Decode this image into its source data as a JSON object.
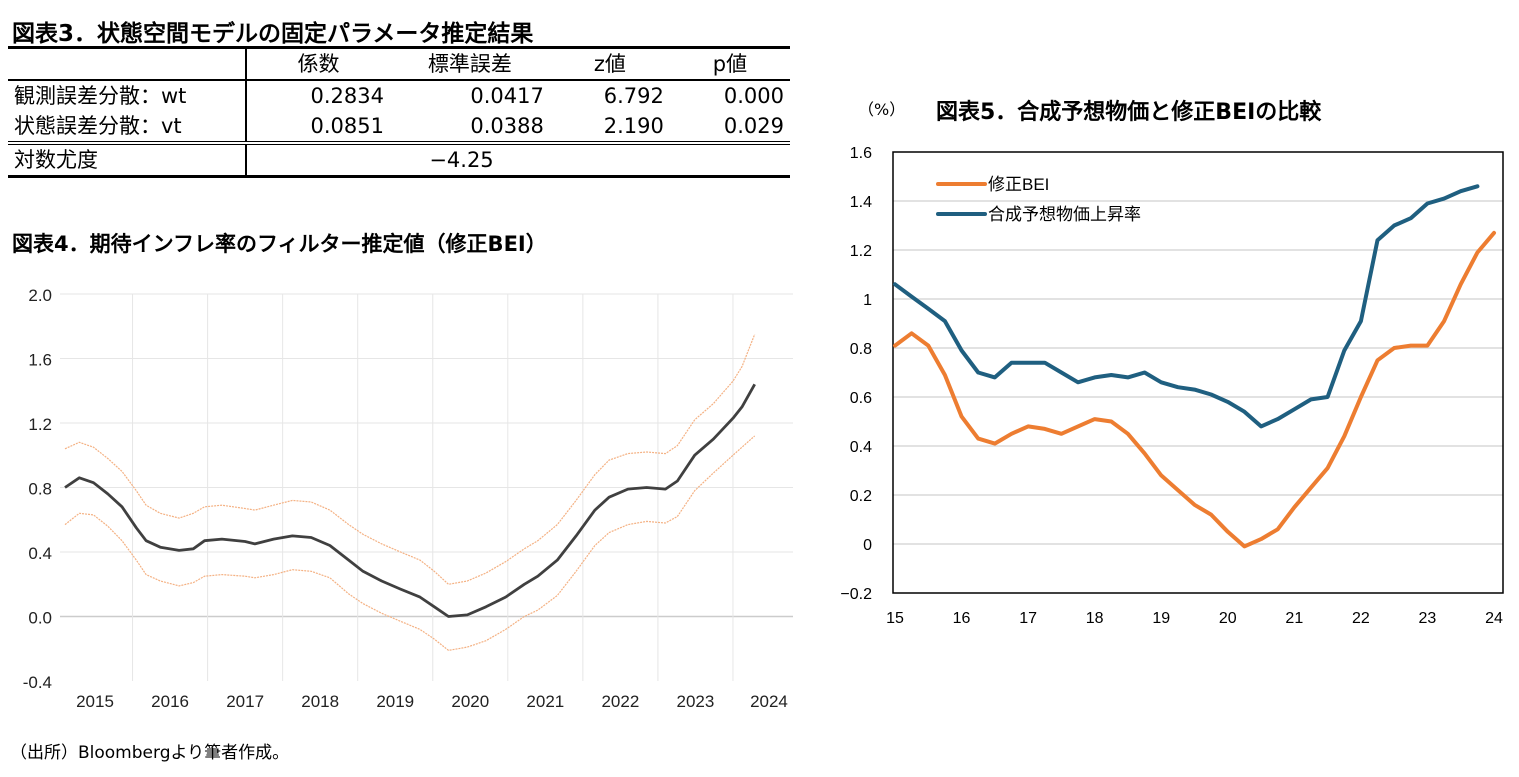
{
  "table3": {
    "title": "図表3．状態空間モデルの固定パラメータ推定結果",
    "headers": [
      "",
      "係数",
      "標準誤差",
      "z値",
      "p値"
    ],
    "rows": [
      {
        "label": "観測誤差分散：wt",
        "coef": "0.2834",
        "se": "0.0417",
        "z": "6.792",
        "p": "0.000"
      },
      {
        "label": "状態誤差分散：vt",
        "coef": "0.0851",
        "se": "0.0388",
        "z": "2.190",
        "p": "0.029"
      }
    ],
    "loglik": {
      "label": "対数尤度",
      "value": "−4.25"
    }
  },
  "source_note": "（出所）Bloombergより筆者作成。",
  "chart_data": [
    {
      "type": "line",
      "title": "図表4．期待インフレ率のフィルター推定値（修正BEI）",
      "xlabel": "",
      "ylabel": "",
      "ylim": [
        -0.4,
        2.0
      ],
      "yticks": [
        "2.0",
        "1.6",
        "1.2",
        "0.8",
        "0.4",
        "0.0",
        "-0.4"
      ],
      "ytick_values": [
        2.0,
        1.6,
        1.2,
        0.8,
        0.4,
        0.0,
        -0.4
      ],
      "xticks": [
        "2015",
        "2016",
        "2017",
        "2018",
        "2019",
        "2020",
        "2021",
        "2022",
        "2023",
        "2024"
      ],
      "xlim": [
        2014.6,
        2024.3
      ],
      "grid": true,
      "legend": "none",
      "colors": {
        "center": "#404040",
        "band": "#f4b183",
        "grid": "#e6e6e6",
        "zero": "#cccccc"
      },
      "x": [
        2014.6,
        2014.79,
        2014.98,
        2015.17,
        2015.36,
        2015.55,
        2015.68,
        2015.87,
        2016.12,
        2016.31,
        2016.46,
        2016.69,
        2017.0,
        2017.13,
        2017.38,
        2017.63,
        2017.88,
        2018.13,
        2018.38,
        2018.57,
        2018.82,
        2019.07,
        2019.33,
        2019.52,
        2019.71,
        2019.96,
        2020.21,
        2020.47,
        2020.72,
        2020.9,
        2021.16,
        2021.41,
        2021.66,
        2021.85,
        2022.1,
        2022.35,
        2022.6,
        2022.76,
        2022.99,
        2023.24,
        2023.5,
        2023.62,
        2023.79
      ],
      "series": [
        {
          "name": "filtered",
          "values": [
            0.8,
            0.86,
            0.83,
            0.76,
            0.68,
            0.55,
            0.47,
            0.43,
            0.41,
            0.42,
            0.47,
            0.48,
            0.465,
            0.45,
            0.48,
            0.5,
            0.49,
            0.44,
            0.35,
            0.28,
            0.22,
            0.17,
            0.12,
            0.06,
            0.0,
            0.01,
            0.06,
            0.12,
            0.2,
            0.25,
            0.35,
            0.5,
            0.66,
            0.74,
            0.79,
            0.8,
            0.79,
            0.84,
            1.0,
            1.1,
            1.23,
            1.3,
            1.44
          ]
        },
        {
          "name": "upper",
          "values": [
            1.04,
            1.08,
            1.05,
            0.98,
            0.9,
            0.78,
            0.69,
            0.64,
            0.61,
            0.64,
            0.68,
            0.69,
            0.67,
            0.66,
            0.69,
            0.72,
            0.71,
            0.66,
            0.57,
            0.51,
            0.45,
            0.4,
            0.35,
            0.28,
            0.2,
            0.22,
            0.27,
            0.34,
            0.42,
            0.47,
            0.57,
            0.72,
            0.88,
            0.97,
            1.01,
            1.02,
            1.01,
            1.06,
            1.22,
            1.32,
            1.46,
            1.55,
            1.75
          ]
        },
        {
          "name": "lower",
          "values": [
            0.57,
            0.64,
            0.63,
            0.56,
            0.47,
            0.35,
            0.26,
            0.22,
            0.19,
            0.21,
            0.25,
            0.26,
            0.25,
            0.24,
            0.26,
            0.29,
            0.28,
            0.24,
            0.14,
            0.08,
            0.02,
            -0.03,
            -0.08,
            -0.14,
            -0.21,
            -0.19,
            -0.15,
            -0.08,
            0.0,
            0.04,
            0.13,
            0.28,
            0.44,
            0.52,
            0.57,
            0.59,
            0.58,
            0.62,
            0.78,
            0.89,
            1.0,
            1.05,
            1.12
          ]
        }
      ]
    },
    {
      "type": "line",
      "title": "図表5．合成予想物価と修正BEIの比較",
      "ylabel": "（%）",
      "xlabel": "",
      "ylim": [
        -0.2,
        1.6
      ],
      "yticks": [
        "1.6",
        "1.4",
        "1.2",
        "1",
        "0.8",
        "0.6",
        "0.4",
        "0.2",
        "0",
        "−0.2"
      ],
      "ytick_values": [
        1.6,
        1.4,
        1.2,
        1.0,
        0.8,
        0.6,
        0.4,
        0.2,
        0.0,
        -0.2
      ],
      "xticks": [
        "15",
        "16",
        "17",
        "18",
        "19",
        "20",
        "21",
        "22",
        "23",
        "24"
      ],
      "xlim": [
        15,
        24
      ],
      "grid": true,
      "legend": "top-left",
      "series": [
        {
          "name": "修正BEI",
          "color": "#ed7d31",
          "x_start": 15,
          "x_step": 0.25,
          "values": [
            0.81,
            0.86,
            0.81,
            0.69,
            0.52,
            0.43,
            0.41,
            0.45,
            0.48,
            0.47,
            0.45,
            0.48,
            0.51,
            0.5,
            0.45,
            0.37,
            0.28,
            0.22,
            0.16,
            0.12,
            0.05,
            -0.01,
            0.02,
            0.06,
            0.15,
            0.23,
            0.31,
            0.44,
            0.6,
            0.75,
            0.8,
            0.81,
            0.81,
            0.91,
            1.06,
            1.19,
            1.27
          ]
        },
        {
          "name": "合成予想物価上昇率",
          "color": "#1f5f80",
          "x_start": 15,
          "x_step": 0.25,
          "values": [
            1.06,
            1.01,
            0.96,
            0.91,
            0.79,
            0.7,
            0.68,
            0.74,
            0.74,
            0.74,
            0.7,
            0.66,
            0.68,
            0.69,
            0.68,
            0.7,
            0.66,
            0.64,
            0.63,
            0.61,
            0.58,
            0.54,
            0.48,
            0.51,
            0.55,
            0.59,
            0.6,
            0.79,
            0.91,
            1.24,
            1.3,
            1.33,
            1.39,
            1.41,
            1.44,
            1.46
          ]
        }
      ]
    }
  ]
}
